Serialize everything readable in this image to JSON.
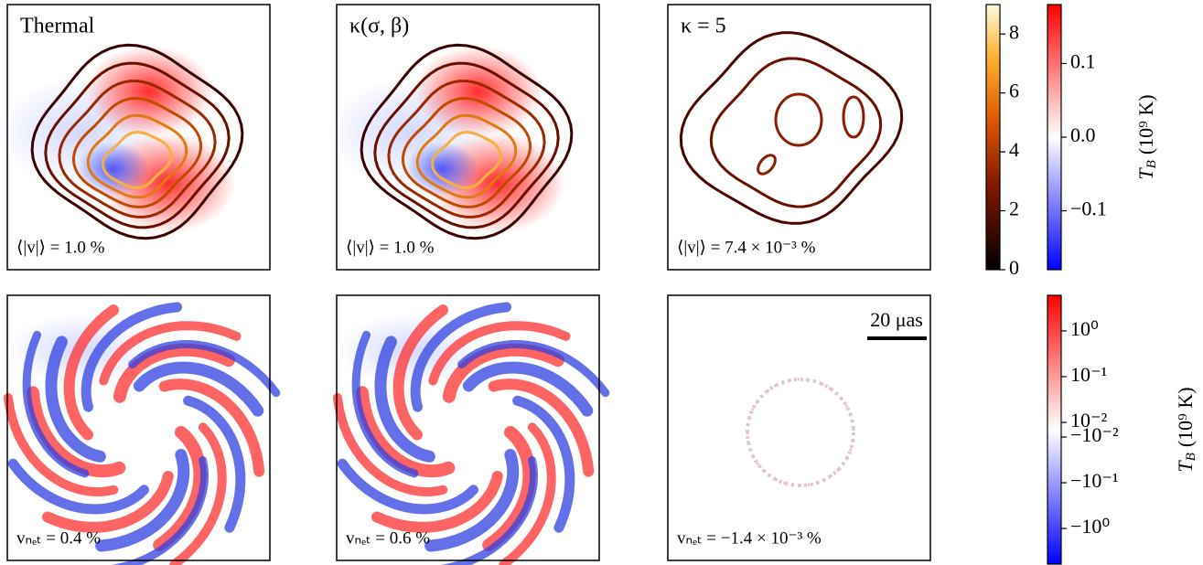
{
  "panels": [
    {
      "title": "Thermal",
      "annotation": "⟨|v|⟩ = 1.0 %"
    },
    {
      "title": "κ(σ, β)",
      "annotation": "⟨|v|⟩ = 1.0 %"
    },
    {
      "title": "κ = 5",
      "annotation": "⟨|v|⟩ = 7.4 × 10⁻³ %"
    },
    {
      "annotation": "vₙₑₜ = 0.4 %"
    },
    {
      "annotation": "vₙₑₜ = 0.6 %"
    },
    {
      "annotation": "vₙₑₜ = −1.4 × 10⁻³ %"
    }
  ],
  "scale_bar": "20 μas",
  "chart_data": [
    {
      "type": "colorbar",
      "colormap": "hot",
      "ylim": [
        0,
        9
      ],
      "yticks": [
        0,
        2,
        4,
        6,
        8
      ]
    },
    {
      "type": "colorbar",
      "colormap": "bwr",
      "ylim": [
        -0.18,
        0.18
      ],
      "yticks": [
        {
          "value": -0.1,
          "label": "−0.1"
        },
        {
          "value": 0,
          "label": "0.0"
        },
        0.1
      ],
      "label": {
        "symbol": "T",
        "subscript": "B",
        "unit": "(10⁹ K)"
      }
    },
    {
      "type": "colorbar",
      "colormap": "bwr",
      "yscale": "symlog",
      "linthresh": 0.01,
      "ylim": [
        -6,
        6
      ],
      "yticks": [
        {
          "value": 1,
          "label": "10⁰"
        },
        {
          "value": 0.1,
          "label": "10⁻¹"
        },
        {
          "value": 0.01,
          "label": "10⁻²"
        },
        {
          "value": -0.01,
          "label": "−10⁻²"
        },
        {
          "value": -0.1,
          "label": "−10⁻¹"
        },
        {
          "value": -1,
          "label": "−10⁰"
        }
      ],
      "label": {
        "symbol": "T",
        "subscript": "B",
        "unit": "(10⁹ K)"
      }
    }
  ]
}
